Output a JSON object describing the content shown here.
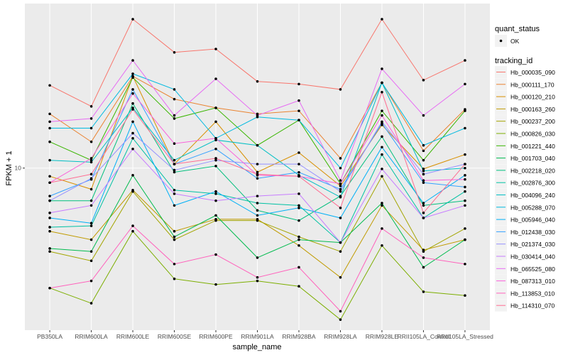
{
  "chart_data": {
    "type": "line",
    "title": "",
    "xlabel": "sample_name",
    "ylabel": "FPKM + 1",
    "y_scale": "log10",
    "ylim": [
      4.46,
      22.7
    ],
    "y_ticks": [
      10
    ],
    "y_tick_labels": [
      "10"
    ],
    "grid": true,
    "background": "#EBEBEB",
    "legend_position": "right",
    "categories": [
      "PB350LA",
      "RRIM600LA",
      "RRIM600LE",
      "RRIM600SE",
      "RRIM600PE",
      "RRIM901LA",
      "RRIM928BA",
      "RRIM928LA",
      "RRIM928LE",
      "RRII105LA_Control",
      "RRII105LA_Stressed"
    ],
    "point_legend": {
      "title": "quant_status",
      "entries": [
        "OK"
      ]
    },
    "color_legend_title": "tracking_id",
    "series": [
      {
        "name": "Hb_000035_090",
        "color": "#F8766D",
        "values": [
          15.1,
          13.6,
          21.0,
          17.8,
          18.1,
          15.4,
          15.2,
          14.8,
          21.0,
          15.5,
          17.1
        ]
      },
      {
        "name": "Hb_000111_170",
        "color": "#EA8331",
        "values": [
          13.1,
          11.4,
          15.8,
          14.1,
          13.5,
          13.1,
          13.3,
          10.5,
          15.3,
          10.9,
          13.4
        ]
      },
      {
        "name": "Hb_000120_210",
        "color": "#D89000",
        "values": [
          9.6,
          9.0,
          15.8,
          10.2,
          12.6,
          9.8,
          10.8,
          9.15,
          12.4,
          9.96,
          10.7
        ]
      },
      {
        "name": "Hb_000163_260",
        "color": "#C09B00",
        "values": [
          7.3,
          7.0,
          8.96,
          7.3,
          7.75,
          7.75,
          6.8,
          5.8,
          8.3,
          6.65,
          7.0
        ]
      },
      {
        "name": "Hb_000237_200",
        "color": "#A3A500",
        "values": [
          6.6,
          6.3,
          8.9,
          7.0,
          7.7,
          7.7,
          7.1,
          6.6,
          9.6,
          6.6,
          7.4
        ]
      },
      {
        "name": "Hb_000826_030",
        "color": "#7CAE00",
        "values": [
          5.5,
          5.1,
          7.3,
          5.76,
          5.6,
          5.7,
          5.55,
          4.7,
          6.8,
          5.4,
          5.3
        ]
      },
      {
        "name": "Hb_001221_440",
        "color": "#39B600",
        "values": [
          11.4,
          10.4,
          15.7,
          12.8,
          13.5,
          11.2,
          12.7,
          9.25,
          13.3,
          10.4,
          13.3
        ]
      },
      {
        "name": "Hb_001703_040",
        "color": "#00BB4E",
        "values": [
          6.7,
          6.6,
          9.65,
          7.1,
          7.9,
          6.4,
          7.0,
          6.9,
          8.4,
          6.1,
          7.0
        ]
      },
      {
        "name": "Hb_002218_020",
        "color": "#00BF7D",
        "values": [
          8.5,
          8.5,
          13.8,
          9.8,
          10.1,
          8.1,
          7.7,
          8.7,
          11.7,
          8.3,
          8.5
        ]
      },
      {
        "name": "Hb_002876_300",
        "color": "#00C1A3",
        "values": [
          7.45,
          7.5,
          11.6,
          8.96,
          8.8,
          8.4,
          8.3,
          6.9,
          10.7,
          7.8,
          8.9
        ]
      },
      {
        "name": "Hb_004096_240",
        "color": "#00BFC4",
        "values": [
          10.4,
          10.3,
          13.5,
          10.4,
          11.5,
          11.2,
          9.65,
          8.65,
          15.3,
          9.86,
          10.0
        ]
      },
      {
        "name": "Hb_005288_070",
        "color": "#00BAE0",
        "values": [
          12.2,
          12.2,
          16.0,
          14.8,
          11.6,
          12.9,
          12.7,
          10.0,
          15.3,
          11.2,
          12.2
        ]
      },
      {
        "name": "Hb_005946_040",
        "color": "#00B0F6",
        "values": [
          7.8,
          7.6,
          12.6,
          8.3,
          8.9,
          7.9,
          8.2,
          7.8,
          11.1,
          8.4,
          9.65
        ]
      },
      {
        "name": "Hb_012438_030",
        "color": "#35A2FF",
        "values": [
          8.7,
          9.45,
          14.8,
          10.2,
          11.0,
          9.5,
          9.79,
          9.0,
          12.5,
          9.3,
          9.1
        ]
      },
      {
        "name": "Hb_021374_030",
        "color": "#9590FF",
        "values": [
          8.5,
          9.5,
          11.9,
          9.9,
          10.4,
          10.2,
          10.2,
          8.9,
          12.6,
          9.7,
          10.2
        ]
      },
      {
        "name": "Hb_030414_040",
        "color": "#C77CFF",
        "values": [
          8.0,
          8.3,
          11.0,
          8.8,
          8.5,
          8.7,
          8.8,
          6.9,
          9.96,
          7.8,
          8.3
        ]
      },
      {
        "name": "Hb_065525_080",
        "color": "#E76BF3",
        "values": [
          12.6,
          12.8,
          17.1,
          13.0,
          15.6,
          13.0,
          14.0,
          9.4,
          16.4,
          13.0,
          15.2
        ]
      },
      {
        "name": "Hb_087313_010",
        "color": "#FA62DB",
        "values": [
          9.3,
          10.5,
          14.5,
          11.3,
          11.6,
          9.65,
          9.6,
          9.25,
          13.0,
          9.4,
          9.45
        ]
      },
      {
        "name": "Hb_113853_010",
        "color": "#FF62BC",
        "values": [
          5.5,
          5.7,
          7.5,
          6.2,
          6.5,
          5.8,
          6.1,
          4.9,
          7.4,
          6.4,
          6.2
        ]
      },
      {
        "name": "Hb_114310_070",
        "color": "#FF6C91",
        "values": [
          9.3,
          9.7,
          13.4,
          10.2,
          10.5,
          9.7,
          9.6,
          8.2,
          14.6,
          8.0,
          10.2
        ]
      }
    ]
  }
}
